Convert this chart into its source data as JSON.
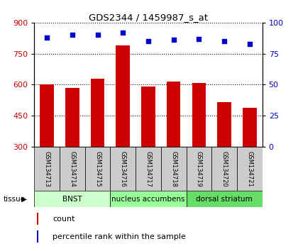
{
  "title": "GDS2344 / 1459987_s_at",
  "samples": [
    "GSM134713",
    "GSM134714",
    "GSM134715",
    "GSM134716",
    "GSM134717",
    "GSM134718",
    "GSM134719",
    "GSM134720",
    "GSM134721"
  ],
  "counts": [
    600,
    585,
    630,
    790,
    590,
    615,
    610,
    515,
    490
  ],
  "percentile_ranks": [
    88,
    90,
    90,
    92,
    85,
    86,
    87,
    85,
    83
  ],
  "ylim_left": [
    300,
    900
  ],
  "ylim_right": [
    0,
    100
  ],
  "yticks_left": [
    300,
    450,
    600,
    750,
    900
  ],
  "yticks_right": [
    0,
    25,
    50,
    75,
    100
  ],
  "bar_color": "#cc0000",
  "scatter_color": "#0000cc",
  "groups": [
    {
      "label": "BNST",
      "start": 0,
      "end": 3,
      "color": "#ccffcc"
    },
    {
      "label": "nucleus accumbens",
      "start": 3,
      "end": 6,
      "color": "#99ff99"
    },
    {
      "label": "dorsal striatum",
      "start": 6,
      "end": 9,
      "color": "#66dd66"
    }
  ],
  "group_row_label": "tissue",
  "legend_count_label": "count",
  "legend_pct_label": "percentile rank within the sample",
  "left_tick_color": "#cc0000",
  "right_tick_color": "#0000cc",
  "tick_label_bg": "#cccccc",
  "bar_width": 0.55,
  "left_axis_label_color": "#cc0000",
  "right_axis_label_color": "#0000cc"
}
